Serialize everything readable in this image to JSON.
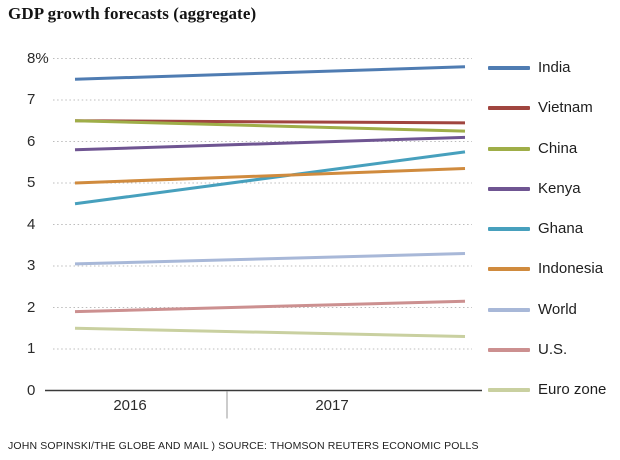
{
  "title": "GDP growth forecasts (aggregate)",
  "footer": "JOHN SOPINSKI/THE GLOBE AND MAIL ) SOURCE: THOMSON REUTERS ECONOMIC POLLS",
  "chart_data": {
    "type": "line",
    "title": "GDP growth forecasts (aggregate)",
    "x": [
      "2016",
      "2017"
    ],
    "series": [
      {
        "name": "India",
        "values": [
          7.5,
          7.8
        ],
        "color": "#4f7cb2"
      },
      {
        "name": "Vietnam",
        "values": [
          6.5,
          6.45
        ],
        "color": "#a0453f"
      },
      {
        "name": "China",
        "values": [
          6.5,
          6.25
        ],
        "color": "#9fae48"
      },
      {
        "name": "Kenya",
        "values": [
          5.8,
          6.1
        ],
        "color": "#6f5592"
      },
      {
        "name": "Ghana",
        "values": [
          4.5,
          5.75
        ],
        "color": "#47a0bd"
      },
      {
        "name": "Indonesia",
        "values": [
          5.0,
          5.35
        ],
        "color": "#d08b3e"
      },
      {
        "name": "World",
        "values": [
          3.05,
          3.3
        ],
        "color": "#a8b8d8"
      },
      {
        "name": "U.S.",
        "values": [
          1.9,
          2.15
        ],
        "color": "#cc9090"
      },
      {
        "name": "Euro zone",
        "values": [
          1.5,
          1.3
        ],
        "color": "#c9d0a0"
      }
    ],
    "ylim": [
      0,
      8
    ],
    "yticks": [
      "0",
      "1",
      "2",
      "3",
      "4",
      "5",
      "6",
      "7",
      "8%"
    ],
    "grid": "horizontal-dotted",
    "legend_position": "right",
    "axis_color": "#3a3a3a",
    "gridline_color": "#bcbcbc"
  }
}
